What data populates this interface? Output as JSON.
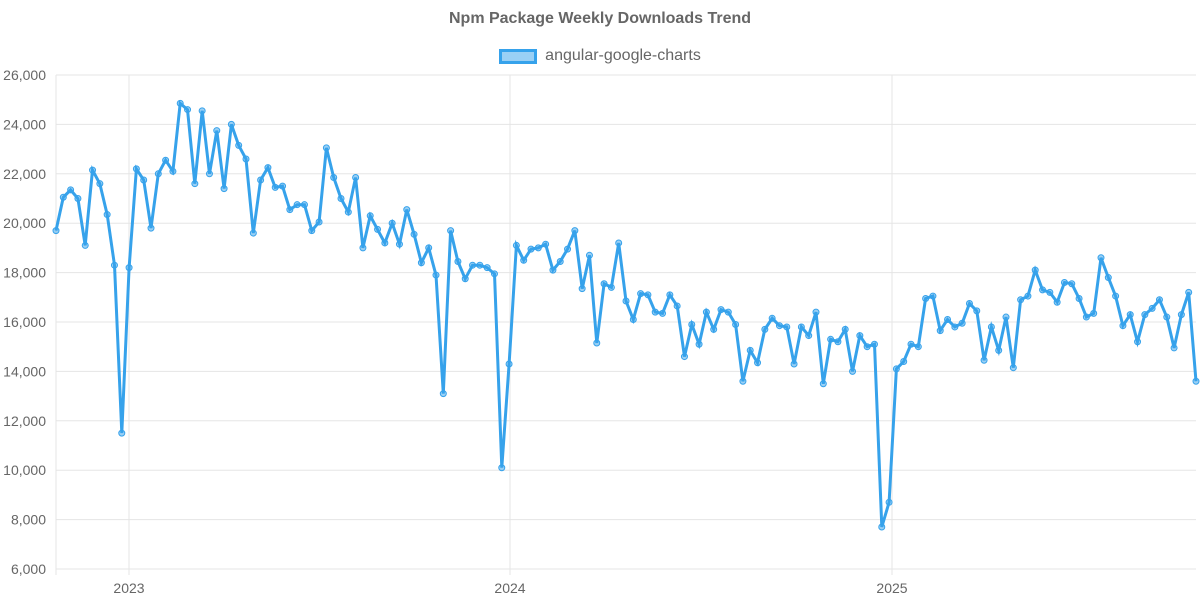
{
  "chart_data": {
    "type": "line",
    "title": "Npm Package Weekly Downloads Trend",
    "series": [
      {
        "name": "angular-google-charts",
        "color": "#36a2eb",
        "values": [
          19700,
          21050,
          21350,
          21000,
          19100,
          22150,
          21600,
          20350,
          18300,
          11500,
          18200,
          22200,
          21750,
          19800,
          22000,
          22550,
          22100,
          24850,
          24600,
          21600,
          24550,
          22000,
          23750,
          21400,
          24000,
          23150,
          22600,
          19600,
          21750,
          22250,
          21450,
          21500,
          20550,
          20750,
          20750,
          19700,
          20050,
          23050,
          21850,
          21000,
          20450,
          21850,
          19000,
          20300,
          19750,
          19200,
          20000,
          19150,
          20550,
          19550,
          18400,
          19000,
          17900,
          13100,
          19700,
          18450,
          17750,
          18300,
          18300,
          18200,
          17950,
          10100,
          14300,
          19100,
          18500,
          18950,
          19000,
          19150,
          18100,
          18450,
          18950,
          19700,
          17350,
          18700,
          15150,
          17550,
          17400,
          19200,
          16850,
          16100,
          17150,
          17100,
          16400,
          16350,
          17100,
          16650,
          14600,
          15900,
          15100,
          16400,
          15700,
          16500,
          16400,
          15900,
          13600,
          14850,
          14350,
          15700,
          16150,
          15850,
          15800,
          14300,
          15800,
          15450,
          16400,
          13500,
          15300,
          15200,
          15700,
          14000,
          15450,
          15000,
          15100,
          7700,
          8700,
          14100,
          14400,
          15100,
          15000,
          16950,
          17050,
          15650,
          16100,
          15800,
          15950,
          16750,
          16450,
          14450,
          15800,
          14850,
          16200,
          14150,
          16900,
          17050,
          18100,
          17300,
          17200,
          16800,
          17600,
          17550,
          16950,
          16200,
          16350,
          18600,
          17800,
          17050,
          15850,
          16300,
          15200,
          16300,
          16550,
          16900,
          16200,
          14950,
          16300,
          17200,
          13600
        ]
      }
    ],
    "x_ticks": [
      "2023",
      "2024",
      "2025"
    ],
    "y_ticks": [
      "6,000",
      "8,000",
      "10,000",
      "12,000",
      "14,000",
      "16,000",
      "18,000",
      "20,000",
      "22,000",
      "24,000",
      "26,000"
    ],
    "ylim": [
      6000,
      26000
    ],
    "grid": true,
    "legend": "top"
  }
}
